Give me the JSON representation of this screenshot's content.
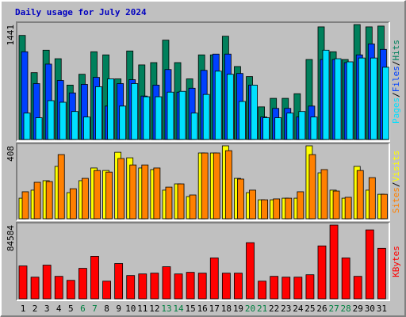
{
  "legend_separator": "/",
  "chart_data": [
    {
      "type": "bar",
      "title": "Daily usage for July 2024",
      "ylim": [
        0,
        1441
      ],
      "yticks": [
        1441
      ],
      "series": [
        {
          "name": "Hits",
          "color": "#00805c",
          "values": [
            1305,
            838,
            1120,
            1013,
            682,
            818,
            1100,
            1061,
            760,
            1110,
            935,
            964,
            1246,
            964,
            760,
            1061,
            1061,
            1295,
            915,
            789,
            409,
            516,
            516,
            574,
            1003,
            1412,
            1100,
            1003,
            1441,
            1412,
            1422
          ]
        },
        {
          "name": "Files",
          "color": "#0040ff",
          "values": [
            1100,
            701,
            945,
            740,
            584,
            691,
            779,
            419,
            701,
            750,
            545,
            682,
            877,
            594,
            643,
            867,
            1071,
            1071,
            828,
            682,
            282,
            390,
            390,
            282,
            419,
            1003,
            1003,
            964,
            1061,
            1198,
            1130
          ]
        },
        {
          "name": "Pages",
          "color": "#00e0ff",
          "values": [
            331,
            273,
            487,
            467,
            351,
            282,
            662,
            760,
            419,
            701,
            536,
            536,
            594,
            604,
            331,
            565,
            857,
            818,
            477,
            682,
            273,
            273,
            331,
            351,
            282,
            1120,
            1013,
            974,
            1022,
            1022,
            906
          ]
        }
      ]
    },
    {
      "type": "bar",
      "ylim": [
        0,
        408
      ],
      "yticks": [
        408
      ],
      "series": [
        {
          "name": "Visits",
          "color": "#ffff00",
          "values": [
            115,
            160,
            213,
            293,
            146,
            213,
            284,
            270,
            372,
            341,
            284,
            275,
            160,
            195,
            124,
            368,
            368,
            408,
            226,
            146,
            106,
            106,
            115,
            115,
            408,
            257,
            160,
            115,
            293,
            160,
            137
          ]
        },
        {
          "name": "Sites",
          "color": "#ff8000",
          "values": [
            151,
            204,
            208,
            359,
            168,
            226,
            270,
            261,
            337,
            301,
            301,
            284,
            177,
            195,
            133,
            368,
            368,
            381,
            222,
            160,
            106,
            111,
            115,
            151,
            359,
            275,
            155,
            120,
            270,
            230,
            137
          ]
        }
      ]
    },
    {
      "type": "bar",
      "ylim": [
        0,
        84584
      ],
      "yticks": [
        84584
      ],
      "categories": [
        "1",
        "2",
        "3",
        "4",
        "5",
        "6",
        "7",
        "8",
        "9",
        "10",
        "11",
        "12",
        "13",
        "14",
        "15",
        "16",
        "17",
        "18",
        "19",
        "20",
        "21",
        "22",
        "23",
        "24",
        "25",
        "26",
        "27",
        "28",
        "29",
        "30",
        "31"
      ],
      "category_colors": [
        "#000000",
        "#000000",
        "#000000",
        "#000000",
        "#000000",
        "#008040",
        "#008040",
        "#000000",
        "#000000",
        "#000000",
        "#000000",
        "#000000",
        "#008040",
        "#008040",
        "#000000",
        "#000000",
        "#000000",
        "#000000",
        "#000000",
        "#008040",
        "#008040",
        "#000000",
        "#000000",
        "#000000",
        "#000000",
        "#000000",
        "#008040",
        "#008040",
        "#000000",
        "#000000",
        "#000000"
      ],
      "series": [
        {
          "name": "KBytes",
          "color": "#ff0000",
          "values": [
            37695,
            24824,
            38615,
            25743,
            21146,
            34937,
            48728,
            20227,
            40454,
            26663,
            28501,
            29421,
            36776,
            28501,
            30340,
            29421,
            46889,
            29421,
            29421,
            64358,
            20227,
            25743,
            24824,
            24824,
            27582,
            60680,
            84584,
            46889,
            25743,
            79068,
            57922
          ]
        }
      ]
    }
  ]
}
